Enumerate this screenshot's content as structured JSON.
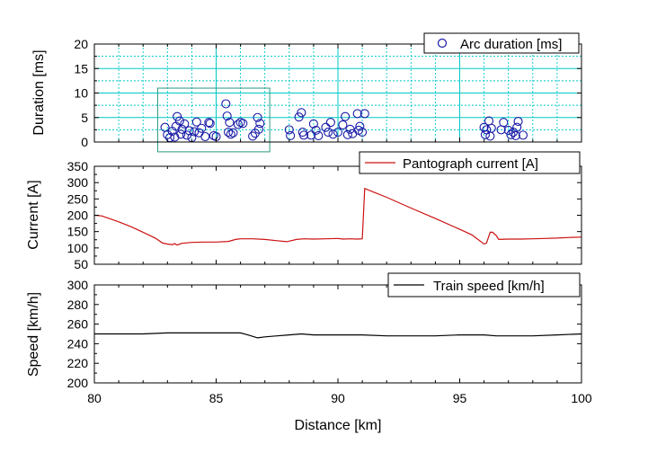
{
  "colors": {
    "arc_marker": "#1a1aa6",
    "pantograph_line": "#cc1111",
    "speed_line": "#000000",
    "grid": "#00c8c8",
    "highlight_box": "#2a9a80",
    "axis": "#000000"
  },
  "chart_data": {
    "type": "line",
    "xlabel": "Distance [km]",
    "xlim": [
      80,
      100
    ],
    "x_ticks": [
      "80",
      "85",
      "90",
      "95",
      "100"
    ],
    "panels": [
      {
        "key": "arc",
        "type": "scatter",
        "ylabel": "Duration [ms]",
        "ylim": [
          0,
          20
        ],
        "y_ticks": [
          "0",
          "5",
          "10",
          "15",
          "20"
        ],
        "grid": true,
        "legend_position": "top-right",
        "highlight_box": {
          "x": [
            82.6,
            87.2
          ],
          "y": [
            -2,
            11
          ]
        },
        "series": [
          {
            "name": "Arc duration [ms]",
            "points": [
              [
                82.9,
                3.0
              ],
              [
                83.0,
                1.5
              ],
              [
                83.1,
                0.9
              ],
              [
                83.2,
                2.2
              ],
              [
                83.3,
                1.0
              ],
              [
                83.35,
                3.2
              ],
              [
                83.4,
                5.2
              ],
              [
                83.5,
                4.3
              ],
              [
                83.55,
                1.6
              ],
              [
                83.6,
                2.6
              ],
              [
                83.7,
                3.7
              ],
              [
                83.8,
                1.4
              ],
              [
                83.9,
                2.3
              ],
              [
                84.0,
                0.9
              ],
              [
                84.1,
                2.1
              ],
              [
                84.2,
                4.1
              ],
              [
                84.3,
                1.9
              ],
              [
                84.4,
                2.8
              ],
              [
                84.55,
                1.1
              ],
              [
                84.7,
                4.0
              ],
              [
                84.75,
                3.8
              ],
              [
                84.9,
                1.3
              ],
              [
                85.0,
                1.1
              ],
              [
                85.4,
                7.8
              ],
              [
                85.45,
                5.3
              ],
              [
                85.5,
                2.0
              ],
              [
                85.55,
                4.0
              ],
              [
                85.6,
                1.6
              ],
              [
                85.7,
                1.9
              ],
              [
                85.9,
                3.6
              ],
              [
                86.0,
                4.0
              ],
              [
                86.1,
                3.8
              ],
              [
                86.5,
                1.2
              ],
              [
                86.6,
                1.8
              ],
              [
                86.7,
                5.0
              ],
              [
                86.75,
                2.6
              ],
              [
                86.8,
                3.8
              ],
              [
                88.0,
                2.5
              ],
              [
                88.05,
                1.3
              ],
              [
                88.4,
                5.1
              ],
              [
                88.5,
                6.0
              ],
              [
                88.55,
                2.0
              ],
              [
                88.6,
                1.4
              ],
              [
                88.9,
                1.4
              ],
              [
                89.0,
                3.7
              ],
              [
                89.1,
                2.4
              ],
              [
                89.2,
                1.3
              ],
              [
                89.5,
                3.0
              ],
              [
                89.6,
                2.0
              ],
              [
                89.7,
                4.0
              ],
              [
                89.8,
                1.6
              ],
              [
                90.0,
                2.0
              ],
              [
                90.2,
                3.5
              ],
              [
                90.3,
                5.2
              ],
              [
                90.4,
                1.5
              ],
              [
                90.5,
                2.6
              ],
              [
                90.6,
                1.7
              ],
              [
                90.8,
                5.8
              ],
              [
                90.85,
                2.4
              ],
              [
                90.9,
                3.2
              ],
              [
                91.0,
                2.0
              ],
              [
                91.1,
                5.8
              ],
              [
                96.0,
                3.0
              ],
              [
                96.05,
                1.5
              ],
              [
                96.1,
                2.5
              ],
              [
                96.2,
                4.3
              ],
              [
                96.25,
                1.2
              ],
              [
                96.3,
                2.8
              ],
              [
                96.7,
                2.5
              ],
              [
                96.8,
                4.0
              ],
              [
                97.0,
                2.4
              ],
              [
                97.1,
                1.5
              ],
              [
                97.2,
                2.0
              ],
              [
                97.3,
                1.3
              ],
              [
                97.35,
                3.0
              ],
              [
                97.4,
                4.2
              ],
              [
                97.6,
                1.4
              ]
            ]
          }
        ]
      },
      {
        "key": "current",
        "type": "line",
        "ylabel": "Current [A]",
        "ylim": [
          50,
          350
        ],
        "y_ticks": [
          "50",
          "100",
          "150",
          "200",
          "250",
          "300",
          "350"
        ],
        "grid": false,
        "legend_position": "top-right",
        "series": [
          {
            "name": "Pantograph current [A]",
            "points": [
              [
                80.0,
                200
              ],
              [
                80.3,
                198
              ],
              [
                81.0,
                180
              ],
              [
                81.5,
                165
              ],
              [
                82.0,
                148
              ],
              [
                82.5,
                130
              ],
              [
                82.8,
                115
              ],
              [
                83.0,
                112
              ],
              [
                83.2,
                110
              ],
              [
                83.3,
                113
              ],
              [
                83.4,
                109
              ],
              [
                83.6,
                114
              ],
              [
                84.0,
                117
              ],
              [
                84.5,
                118
              ],
              [
                85.0,
                118
              ],
              [
                85.5,
                120
              ],
              [
                85.8,
                126
              ],
              [
                86.0,
                128
              ],
              [
                86.5,
                128
              ],
              [
                87.0,
                126
              ],
              [
                87.5,
                122
              ],
              [
                87.9,
                119
              ],
              [
                88.3,
                126
              ],
              [
                88.6,
                128
              ],
              [
                89.0,
                127
              ],
              [
                89.5,
                128
              ],
              [
                90.0,
                129
              ],
              [
                90.2,
                127
              ],
              [
                90.5,
                128
              ],
              [
                90.8,
                127
              ],
              [
                91.0,
                128
              ],
              [
                91.1,
                282
              ],
              [
                91.5,
                270
              ],
              [
                92.0,
                255
              ],
              [
                93.0,
                222
              ],
              [
                94.0,
                190
              ],
              [
                95.0,
                157
              ],
              [
                95.5,
                140
              ],
              [
                96.0,
                112
              ],
              [
                96.1,
                115
              ],
              [
                96.25,
                148
              ],
              [
                96.35,
                148
              ],
              [
                96.5,
                138
              ],
              [
                96.6,
                126
              ],
              [
                97.0,
                127
              ],
              [
                97.5,
                127
              ],
              [
                98.0,
                128
              ],
              [
                98.5,
                129
              ],
              [
                99.0,
                130
              ],
              [
                99.5,
                132
              ],
              [
                100.0,
                133
              ]
            ]
          }
        ]
      },
      {
        "key": "speed",
        "type": "line",
        "ylabel": "Speed [km/h]",
        "ylim": [
          200,
          300
        ],
        "y_ticks": [
          "200",
          "220",
          "240",
          "260",
          "280",
          "300"
        ],
        "grid": false,
        "legend_position": "top-right",
        "series": [
          {
            "name": "Train speed [km/h]",
            "points": [
              [
                80.0,
                250
              ],
              [
                81.0,
                250
              ],
              [
                82.0,
                250
              ],
              [
                83.0,
                251
              ],
              [
                84.0,
                251
              ],
              [
                85.0,
                251
              ],
              [
                86.0,
                251
              ],
              [
                86.3,
                249
              ],
              [
                86.7,
                246
              ],
              [
                87.0,
                247
              ],
              [
                87.5,
                248
              ],
              [
                88.0,
                249
              ],
              [
                88.5,
                250
              ],
              [
                89.0,
                249
              ],
              [
                90.0,
                249
              ],
              [
                91.0,
                249
              ],
              [
                92.0,
                248
              ],
              [
                93.0,
                248
              ],
              [
                94.0,
                248
              ],
              [
                95.0,
                249
              ],
              [
                96.0,
                249
              ],
              [
                96.5,
                248
              ],
              [
                97.0,
                248
              ],
              [
                98.0,
                248
              ],
              [
                99.0,
                249
              ],
              [
                100.0,
                250
              ]
            ]
          }
        ]
      }
    ]
  }
}
